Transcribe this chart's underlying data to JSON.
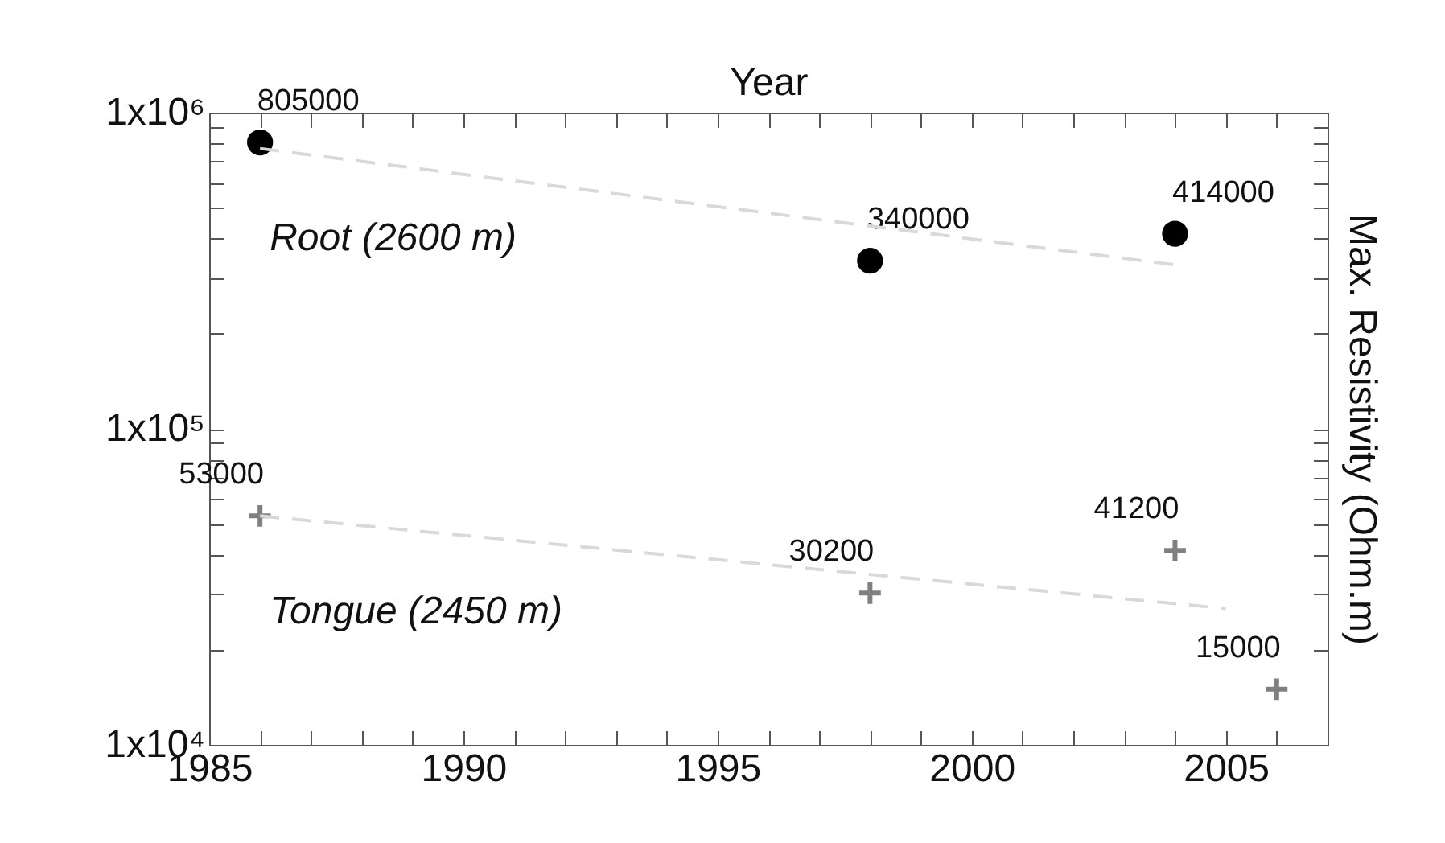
{
  "chart_data": {
    "type": "scatter",
    "xlabel": "Year",
    "ylabel": "Max. Resistivity (Ohm.m)",
    "log": "y",
    "xlim": [
      1985,
      2007
    ],
    "ylim": [
      10000,
      1000000
    ],
    "xticks": [
      1985,
      {
        "value": 1986,
        "label": null
      },
      {
        "value": 1987,
        "label": null
      },
      {
        "value": 1988,
        "label": null
      },
      {
        "value": 1989,
        "label": null
      },
      1990,
      {
        "value": 1991,
        "label": null
      },
      {
        "value": 1992,
        "label": null
      },
      {
        "value": 1993,
        "label": null
      },
      {
        "value": 1994,
        "label": null
      },
      1995,
      {
        "value": 1996,
        "label": null
      },
      {
        "value": 1997,
        "label": null
      },
      {
        "value": 1998,
        "label": null
      },
      {
        "value": 1999,
        "label": null
      },
      2000,
      {
        "value": 2001,
        "label": null
      },
      {
        "value": 2002,
        "label": null
      },
      {
        "value": 2003,
        "label": null
      },
      {
        "value": 2004,
        "label": null
      },
      2005,
      {
        "value": 2006,
        "label": null
      }
    ],
    "yticks": [
      {
        "value": 10000,
        "label": "1x10⁴"
      },
      {
        "value": 20000,
        "label": null
      },
      {
        "value": 30000,
        "label": null
      },
      {
        "value": 40000,
        "label": null
      },
      {
        "value": 50000,
        "label": null
      },
      {
        "value": 60000,
        "label": null
      },
      {
        "value": 70000,
        "label": null
      },
      {
        "value": 80000,
        "label": null
      },
      {
        "value": 90000,
        "label": null
      },
      {
        "value": 100000,
        "label": "1x10⁵"
      },
      {
        "value": 200000,
        "label": null
      },
      {
        "value": 300000,
        "label": null
      },
      {
        "value": 400000,
        "label": null
      },
      {
        "value": 500000,
        "label": null
      },
      {
        "value": 600000,
        "label": null
      },
      {
        "value": 700000,
        "label": null
      },
      {
        "value": 800000,
        "label": null
      },
      {
        "value": 900000,
        "label": null
      },
      {
        "value": 1000000,
        "label": "1x10⁶"
      }
    ],
    "series": [
      {
        "name": "Root (2600 m)",
        "color": "#000000",
        "marker": "circle",
        "x": [
          1986,
          1998,
          2004
        ],
        "values": [
          805000,
          340000,
          414000
        ],
        "value_labels": [
          "805000",
          "340000",
          "414000"
        ]
      },
      {
        "name": "Tongue (2450 m)",
        "color": "#808080",
        "marker": "cross",
        "x": [
          1986,
          1998,
          2004,
          2006
        ],
        "values": [
          53000,
          30200,
          41200,
          15000
        ],
        "value_labels": [
          "53000",
          "30200",
          "41200",
          "15000"
        ]
      },
      {
        "type": "line",
        "color": "#d9d9d9",
        "line_style": "dashed",
        "x": [
          1986,
          2004
        ],
        "values": [
          770000,
          330000
        ]
      },
      {
        "type": "line",
        "color": "#d9d9d9",
        "line_style": "dashed",
        "x": [
          1986,
          2005
        ],
        "values": [
          53000,
          27000
        ]
      }
    ]
  }
}
